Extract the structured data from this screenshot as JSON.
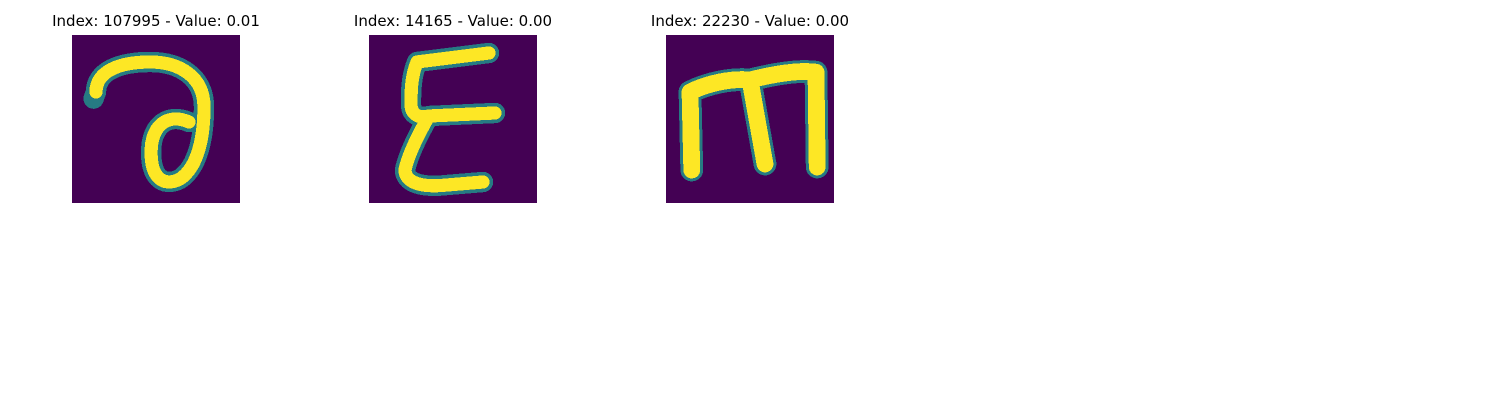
{
  "panels": [
    {
      "title": "Index: 107995 - Value: 0.01",
      "glyph": "a-like handwritten character",
      "colors": {
        "background": "#440154",
        "mid": "#21918c",
        "stroke": "#fde725"
      }
    },
    {
      "title": "Index: 14165 - Value: 0.00",
      "glyph": "E-like handwritten character",
      "colors": {
        "background": "#440154",
        "mid": "#21918c",
        "stroke": "#fde725"
      }
    },
    {
      "title": "Index: 22230 - Value: 0.00",
      "glyph": "m handwritten character",
      "colors": {
        "background": "#440154",
        "mid": "#21918c",
        "stroke": "#fde725"
      }
    }
  ]
}
